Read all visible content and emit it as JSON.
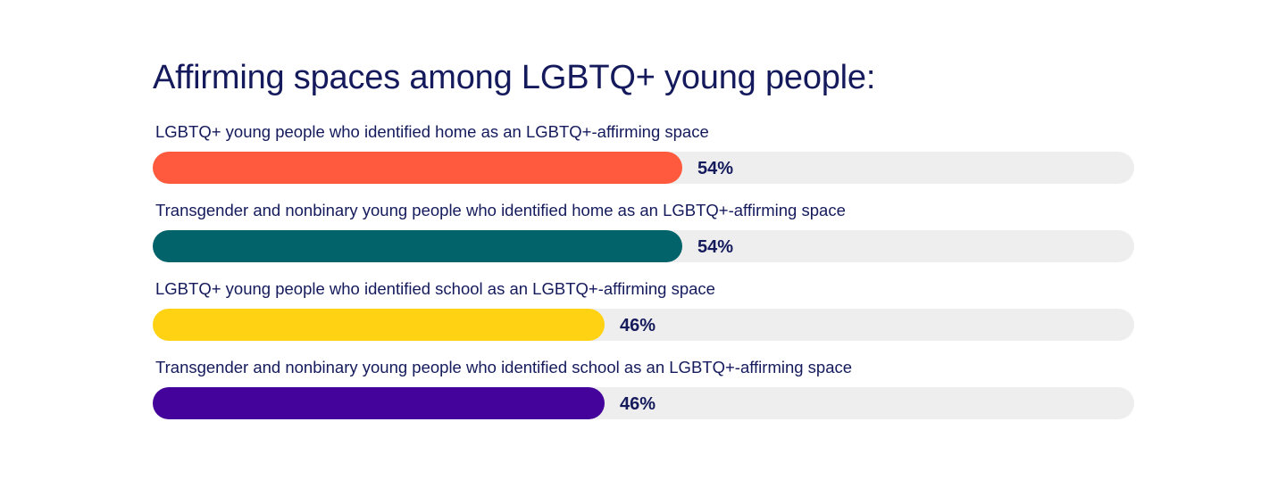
{
  "chart_data": {
    "type": "bar",
    "orientation": "horizontal",
    "title": "Affirming spaces among LGBTQ+ young people:",
    "xlim": [
      0,
      100
    ],
    "grid": false,
    "categories": [
      "LGBTQ+ young people who identified home as an LGBTQ+-affirming space",
      "Transgender and nonbinary young people who identified home as an LGBTQ+-affirming space",
      "LGBTQ+ young people who identified school as an LGBTQ+-affirming space",
      "Transgender and nonbinary young people who identified school as an LGBTQ+-affirming space"
    ],
    "values": [
      54,
      54,
      46,
      46
    ],
    "value_labels": [
      "54%",
      "54%",
      "46%",
      "46%"
    ],
    "colors": [
      "#ff5a3d",
      "#03636a",
      "#ffd313",
      "#44039b"
    ],
    "track_color": "#eeeeee"
  }
}
